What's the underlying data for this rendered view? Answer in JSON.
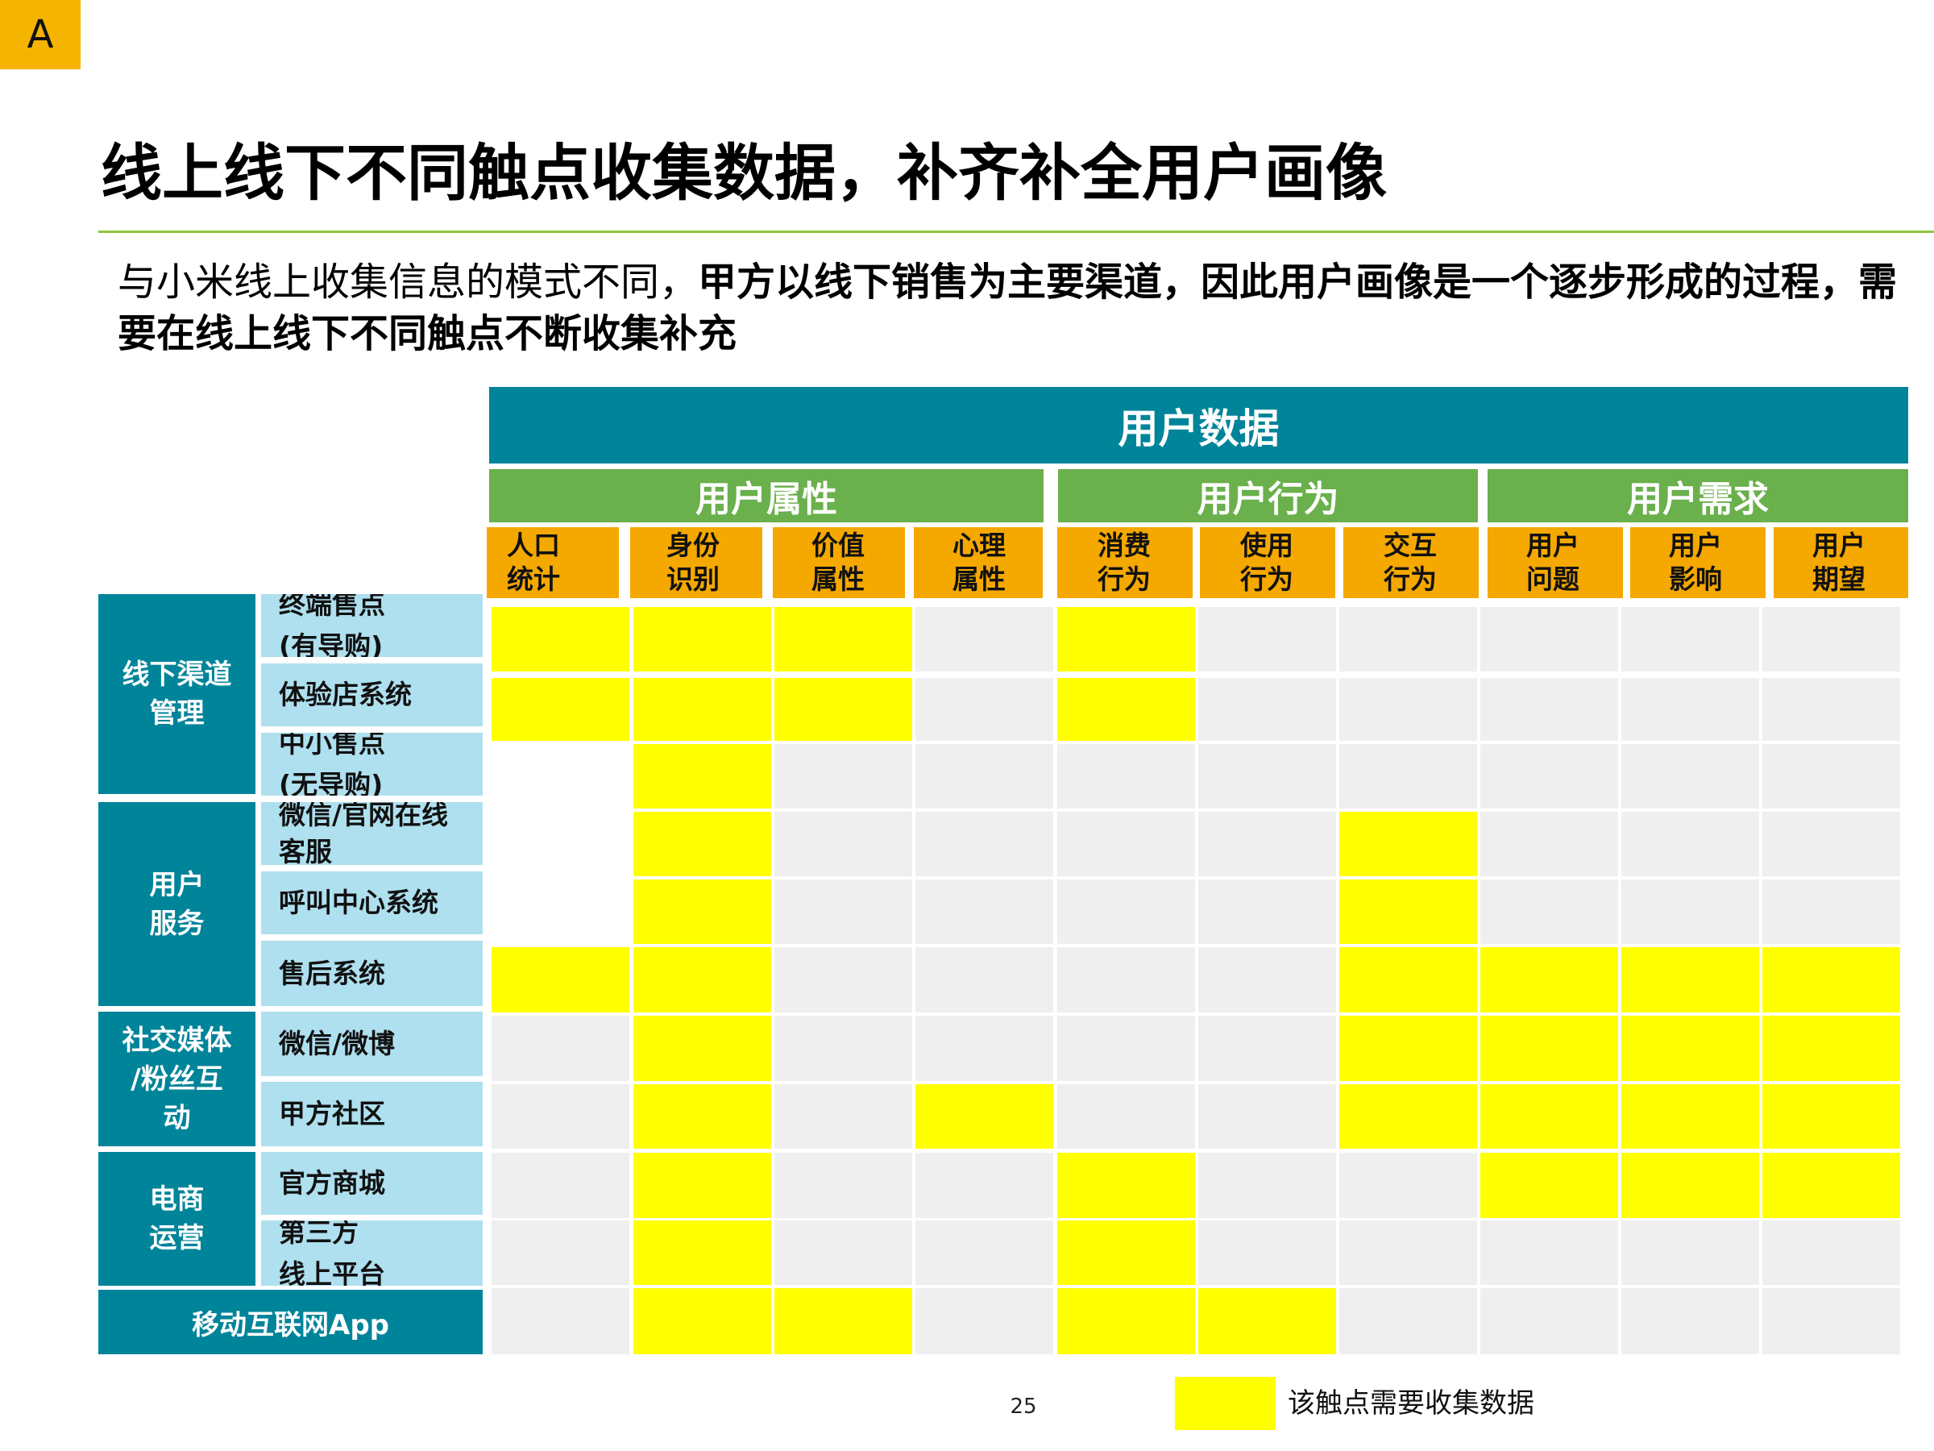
{
  "logo": {
    "text": "A",
    "color": "#f4b400"
  },
  "title": "线上线下不同触点收集数据，补齐补全用户画像",
  "subtitle": {
    "plain": "与小米线上收集信息的模式不同，",
    "bold": "甲方以线下销售为主要渠道，因此用户画像是一个逐步形成的过程，需要在线上线下不同触点不断收集补充"
  },
  "table": {
    "header_main": "用户数据",
    "groups": [
      "用户属性",
      "用户行为",
      "用户需求"
    ],
    "columns": [
      "人口\n统计",
      "身份\n识别",
      "价值\n属性",
      "心理\n属性",
      "消费\n行为",
      "使用\n行为",
      "交互\n行为",
      "用户\n问题",
      "用户\n影响",
      "用户\n期望"
    ],
    "row_groups": [
      "线下渠道\n管理",
      "用户\n服务",
      "社交媒体\n/粉丝互\n动",
      "电商\n运营"
    ],
    "rows": [
      {
        "label": "终端售点\n(有导购)",
        "cells": [
          1,
          1,
          1,
          0,
          1,
          0,
          0,
          0,
          0,
          0
        ]
      },
      {
        "label": "体验店系统",
        "cells": [
          1,
          1,
          1,
          0,
          1,
          0,
          0,
          0,
          0,
          0
        ]
      },
      {
        "label": "中小售点\n(无导购)",
        "cells": [
          -1,
          1,
          0,
          0,
          0,
          0,
          0,
          0,
          0,
          0
        ]
      },
      {
        "label": "微信/官网在线\n客服",
        "cells": [
          -1,
          1,
          0,
          0,
          0,
          0,
          1,
          0,
          0,
          0
        ]
      },
      {
        "label": "呼叫中心系统",
        "cells": [
          -1,
          1,
          0,
          0,
          0,
          0,
          1,
          0,
          0,
          0
        ]
      },
      {
        "label": "售后系统",
        "cells": [
          1,
          1,
          0,
          0,
          0,
          0,
          1,
          1,
          1,
          1
        ]
      },
      {
        "label": "微信/微博",
        "cells": [
          0,
          1,
          0,
          0,
          0,
          0,
          1,
          1,
          1,
          1
        ]
      },
      {
        "label": "甲方社区",
        "cells": [
          0,
          1,
          0,
          1,
          0,
          0,
          1,
          1,
          1,
          1
        ]
      },
      {
        "label": "官方商城",
        "cells": [
          0,
          1,
          0,
          0,
          1,
          0,
          0,
          1,
          1,
          1
        ]
      },
      {
        "label": "第三方\n线上平台",
        "cells": [
          0,
          1,
          0,
          0,
          1,
          0,
          0,
          0,
          0,
          0
        ]
      },
      {
        "label": "移动互联网App",
        "cells": [
          0,
          1,
          1,
          0,
          1,
          1,
          0,
          0,
          0,
          0
        ]
      }
    ]
  },
  "legend": {
    "label": "该触点需要收集数据",
    "color": "#ffff00"
  },
  "page_number": "25",
  "colors": {
    "teal": "#00849a",
    "green": "#6ab04c",
    "orange": "#f4a800",
    "light_blue": "#aee0ef",
    "highlight": "#ffff00",
    "empty_cell": "#efefef"
  }
}
